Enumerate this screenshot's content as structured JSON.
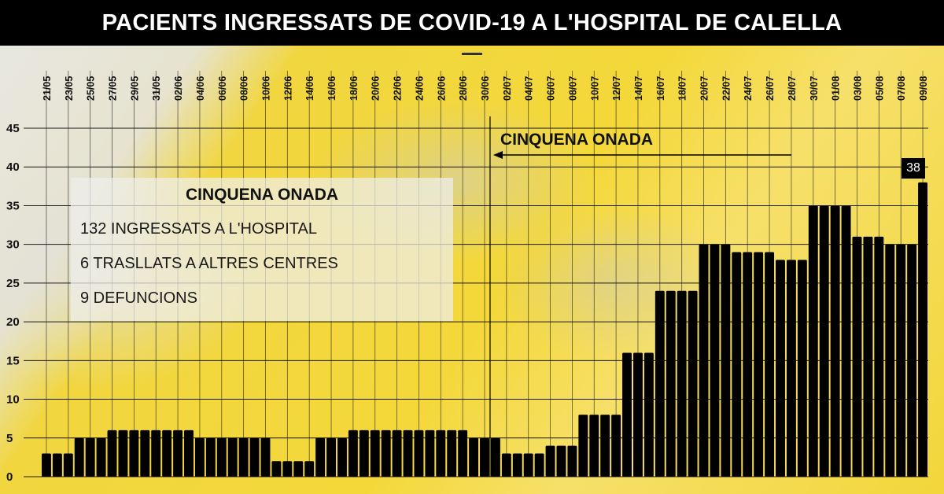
{
  "header": {
    "title": "PACIENTS INGRESSATS DE COVID-19 A L'HOSPITAL DE CALELLA"
  },
  "info_box": {
    "title": "CINQUENA ONADA",
    "lines": [
      "132 INGRESSATS A L'HOSPITAL",
      "6 TRASLLATS A ALTRES CENTRES",
      "9 DEFUNCIONS"
    ]
  },
  "annotation": {
    "wave_label": "CINQUENA ONADA",
    "last_value_label": "38"
  },
  "colors": {
    "bar": "#000000",
    "header_bg": "#000000",
    "background": "#f3d63a"
  },
  "chart_data": {
    "type": "bar",
    "title": "PACIENTS INGRESSATS DE COVID-19 A L'HOSPITAL DE CALELLA",
    "xlabel": "",
    "ylabel": "",
    "ylim": [
      0,
      45
    ],
    "y_ticks": [
      0,
      5,
      10,
      15,
      20,
      25,
      30,
      35,
      40,
      45
    ],
    "grid": true,
    "x_tick_labels": [
      "21/05",
      "23/05",
      "25/05",
      "27/05",
      "29/05",
      "31/05",
      "02/06",
      "04/06",
      "06/06",
      "08/06",
      "10/06",
      "12/06",
      "14/06",
      "16/06",
      "18/06",
      "20/06",
      "22/06",
      "24/06",
      "26/06",
      "28/06",
      "30/06",
      "02/07",
      "04/07",
      "06/07",
      "08/07",
      "10/07",
      "12/07",
      "14/07",
      "16/07",
      "18/07",
      "20/07",
      "22/07",
      "24/07",
      "26/07",
      "28/07",
      "30/07",
      "01/08",
      "03/08",
      "05/08",
      "07/08",
      "09/08"
    ],
    "categories": [
      "21/05",
      "22/05",
      "23/05",
      "24/05",
      "25/05",
      "26/05",
      "27/05",
      "28/05",
      "29/05",
      "30/05",
      "31/05",
      "01/06",
      "02/06",
      "03/06",
      "04/06",
      "05/06",
      "06/06",
      "07/06",
      "08/06",
      "09/06",
      "10/06",
      "11/06",
      "12/06",
      "13/06",
      "14/06",
      "15/06",
      "16/06",
      "17/06",
      "18/06",
      "19/06",
      "20/06",
      "21/06",
      "22/06",
      "23/06",
      "24/06",
      "25/06",
      "26/06",
      "27/06",
      "28/06",
      "29/06",
      "30/06",
      "01/07",
      "02/07",
      "03/07",
      "04/07",
      "05/07",
      "06/07",
      "07/07",
      "08/07",
      "09/07",
      "10/07",
      "11/07",
      "12/07",
      "13/07",
      "14/07",
      "15/07",
      "16/07",
      "17/07",
      "18/07",
      "19/07",
      "20/07",
      "21/07",
      "22/07",
      "23/07",
      "24/07",
      "25/07",
      "26/07",
      "27/07",
      "28/07",
      "29/07",
      "30/07",
      "31/07",
      "01/08",
      "02/08",
      "03/08",
      "04/08",
      "05/08",
      "06/08",
      "07/08",
      "08/08",
      "09/08"
    ],
    "values": [
      3,
      3,
      3,
      5,
      5,
      5,
      6,
      6,
      6,
      6,
      6,
      6,
      6,
      6,
      5,
      5,
      5,
      5,
      5,
      5,
      5,
      2,
      2,
      2,
      2,
      5,
      5,
      5,
      6,
      6,
      6,
      6,
      6,
      6,
      6,
      6,
      6,
      6,
      6,
      5,
      5,
      5,
      3,
      3,
      3,
      3,
      4,
      4,
      4,
      8,
      8,
      8,
      8,
      16,
      16,
      16,
      24,
      24,
      24,
      24,
      30,
      30,
      30,
      29,
      29,
      29,
      29,
      28,
      28,
      28,
      35,
      35,
      35,
      35,
      31,
      31,
      31,
      30,
      30,
      30,
      38
    ],
    "annotations": [
      {
        "text": "CINQUENA ONADA",
        "type": "arrow",
        "from": "28/07",
        "to": "01/07"
      },
      {
        "text": "38",
        "at": "09/08"
      }
    ],
    "vertical_marker": "01/07"
  }
}
